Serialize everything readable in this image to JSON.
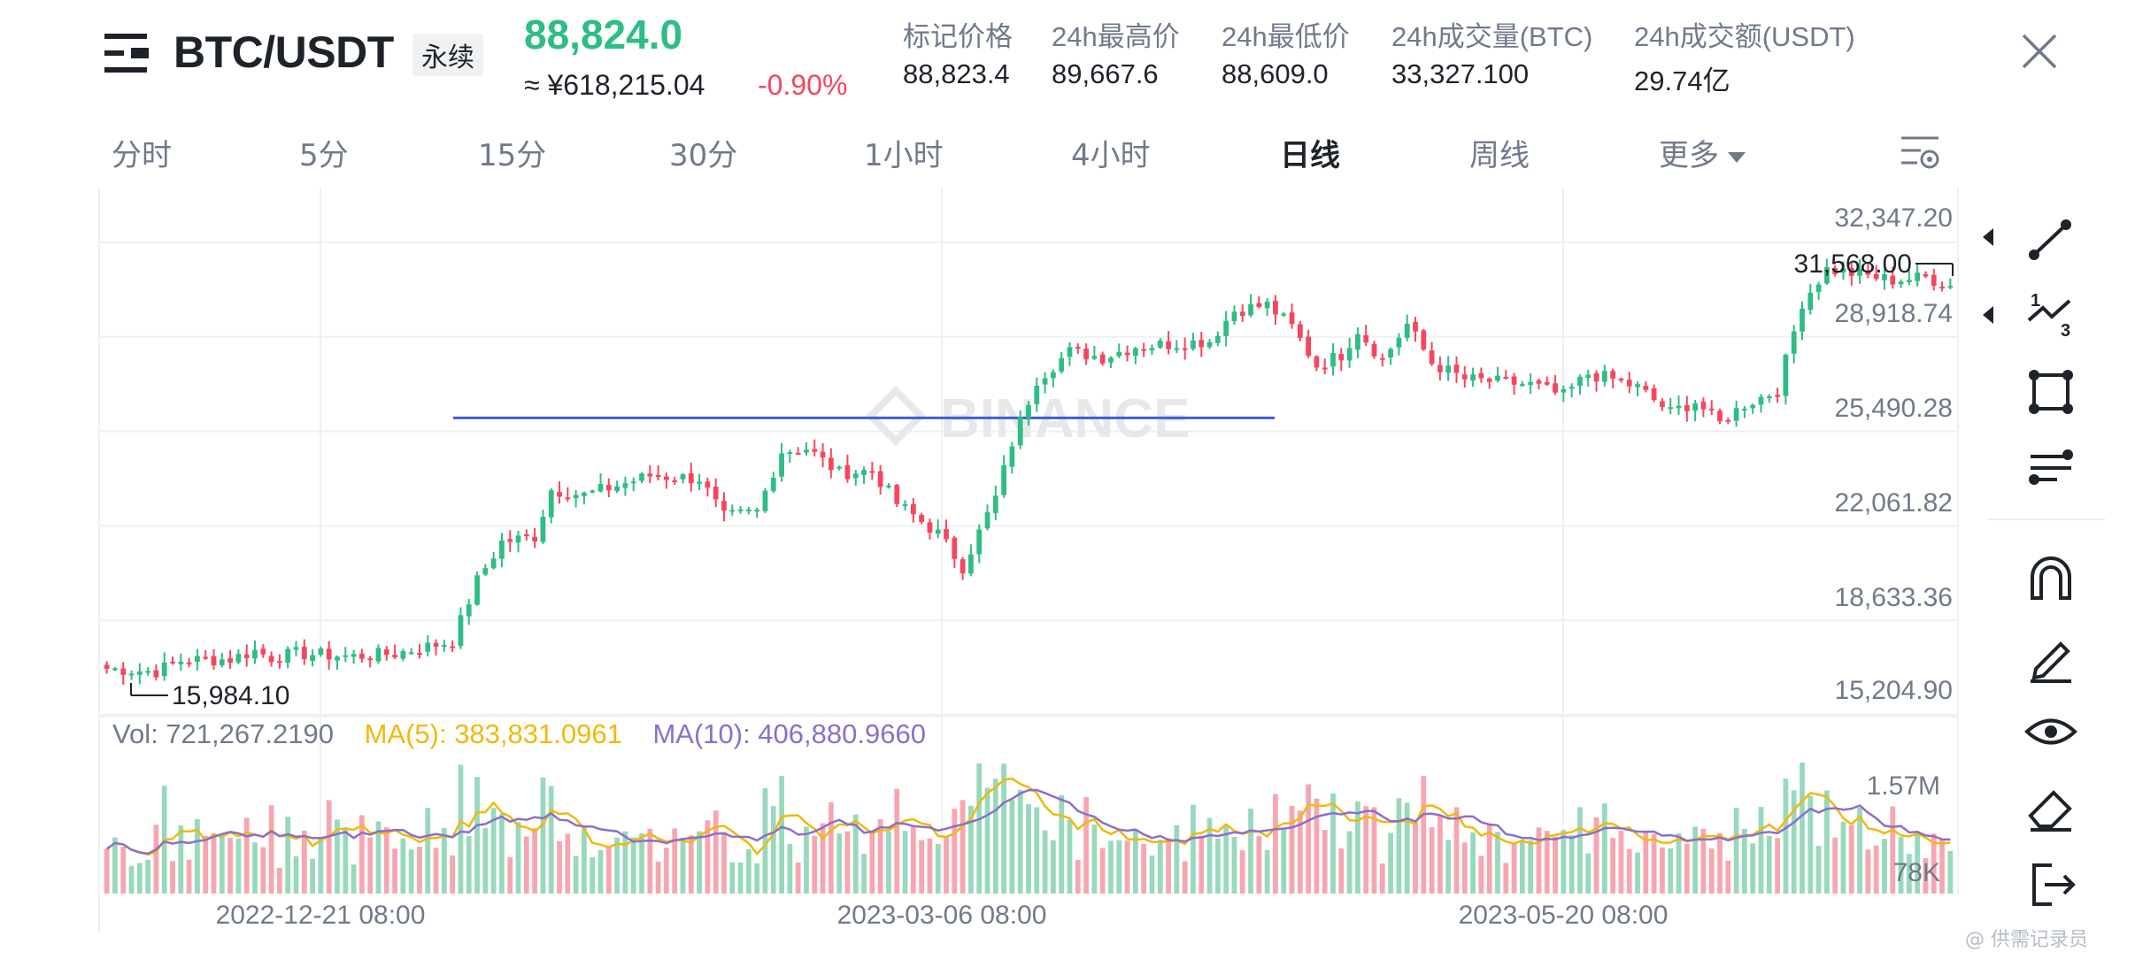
{
  "header": {
    "pair": "BTC/USDT",
    "contract_type": "永续",
    "last_price": "88,824.0",
    "cny_price": "≈ ¥618,215.04",
    "change_pct": "-0.90%",
    "stats": [
      {
        "label": "标记价格",
        "value": "88,823.4"
      },
      {
        "label": "24h最高价",
        "value": "89,667.6"
      },
      {
        "label": "24h最低价",
        "value": "88,609.0"
      },
      {
        "label": "24h成交量(BTC)",
        "value": "33,327.100"
      },
      {
        "label": "24h成交额(USDT)",
        "value": "29.74亿"
      }
    ],
    "close_icon": "close-icon",
    "menu_icon": "menu-icon"
  },
  "tabs": [
    {
      "label": "分时",
      "active": false
    },
    {
      "label": "5分",
      "active": false
    },
    {
      "label": "15分",
      "active": false
    },
    {
      "label": "30分",
      "active": false
    },
    {
      "label": "1小时",
      "active": false
    },
    {
      "label": "4小时",
      "active": false
    },
    {
      "label": "日线",
      "active": true
    },
    {
      "label": "周线",
      "active": false
    },
    {
      "label": "更多",
      "active": false
    }
  ],
  "toolbar": {
    "tools": [
      "trend-line-icon",
      "fibonacci-icon",
      "rectangle-icon",
      "parallel-lines-icon",
      "magnet-icon",
      "pencil-icon",
      "eye-icon",
      "eraser-icon",
      "exit-icon"
    ]
  },
  "volume_legend": {
    "vol": "Vol: 721,267.2190",
    "ma5": "MA(5): 383,831.0961",
    "ma10": "MA(10): 406,880.9660"
  },
  "watermark": "BINANCE",
  "footer_watermark": "@ 供需记录员",
  "colors": {
    "up": "#2ebd85",
    "down": "#f6465d",
    "ma5": "#f0b90b",
    "ma10": "#8b6fc9",
    "hline": "#3d5fd1"
  },
  "chart_data": {
    "type": "candlestick",
    "price_ticks": [
      "32,347.20",
      "28,918.74",
      "25,490.28",
      "22,061.82",
      "18,633.36",
      "15,204.90"
    ],
    "price_tick_values": [
      32347.2,
      28918.74,
      25490.28,
      22061.82,
      18633.36,
      15204.9
    ],
    "ylim": [
      15204.9,
      32347.2
    ],
    "high_label": "31,568.00",
    "low_label": "15,984.10",
    "volume_ticks": [
      "1.57M",
      "78K"
    ],
    "time_labels": [
      "2022-12-21 08:00",
      "2023-03-06 08:00",
      "2023-05-20 08:00"
    ],
    "horizontal_line_price": 25400,
    "close_keypoints": [
      [
        0,
        16300
      ],
      [
        6,
        16200
      ],
      [
        9,
        16600
      ],
      [
        15,
        16650
      ],
      [
        18,
        16950
      ],
      [
        20,
        16700
      ],
      [
        23,
        16850
      ],
      [
        30,
        16750
      ],
      [
        35,
        16850
      ],
      [
        42,
        17300
      ],
      [
        45,
        19500
      ],
      [
        48,
        20900
      ],
      [
        52,
        21100
      ],
      [
        54,
        22800
      ],
      [
        58,
        22600
      ],
      [
        62,
        22950
      ],
      [
        66,
        23300
      ],
      [
        72,
        23200
      ],
      [
        75,
        21800
      ],
      [
        79,
        22000
      ],
      [
        82,
        24200
      ],
      [
        85,
        24300
      ],
      [
        89,
        23400
      ],
      [
        93,
        23500
      ],
      [
        96,
        22300
      ],
      [
        101,
        21200
      ],
      [
        104,
        20000
      ],
      [
        108,
        22500
      ],
      [
        110,
        24500
      ],
      [
        113,
        26800
      ],
      [
        117,
        27800
      ],
      [
        121,
        27600
      ],
      [
        125,
        28000
      ],
      [
        130,
        28100
      ],
      [
        134,
        28200
      ],
      [
        137,
        29300
      ],
      [
        141,
        29500
      ],
      [
        144,
        28700
      ],
      [
        147,
        27300
      ],
      [
        150,
        27700
      ],
      [
        152,
        28600
      ],
      [
        155,
        27500
      ],
      [
        158,
        28800
      ],
      [
        161,
        27400
      ],
      [
        165,
        26800
      ],
      [
        169,
        26700
      ],
      [
        173,
        26600
      ],
      [
        177,
        26200
      ],
      [
        180,
        27000
      ],
      [
        183,
        26800
      ],
      [
        186,
        26500
      ],
      [
        190,
        25600
      ],
      [
        193,
        26000
      ],
      [
        196,
        25200
      ],
      [
        199,
        25900
      ],
      [
        203,
        26400
      ],
      [
        206,
        29600
      ],
      [
        209,
        30800
      ],
      [
        213,
        30600
      ],
      [
        217,
        30400
      ],
      [
        221,
        30500
      ],
      [
        224,
        30200
      ]
    ]
  }
}
